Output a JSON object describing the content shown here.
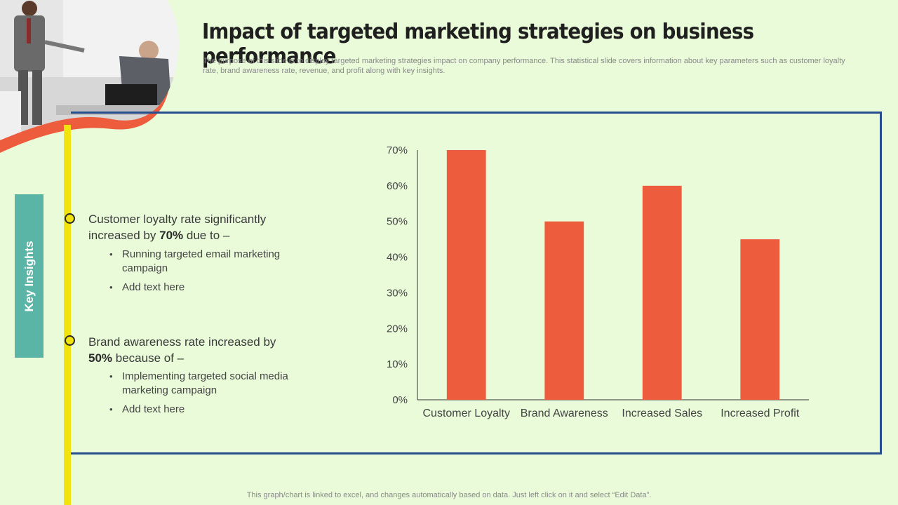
{
  "title": "Impact of targeted marketing strategies on business performance",
  "subtitle": "The purpose of this slide is to display targeted marketing strategies impact on company performance. This statistical slide covers information about key parameters such as customer loyalty rate, brand awareness rate, revenue, and profit along with key insights.",
  "key_insights_label": "Key Insights",
  "insights": [
    {
      "head_pre": "Customer loyalty rate significantly increased by ",
      "head_bold": "70%",
      "head_post": " due to –",
      "bullets": [
        "Running targeted email marketing campaign",
        "Add text here"
      ]
    },
    {
      "head_pre": "Brand awareness rate increased by ",
      "head_bold": "50%",
      "head_post": " because of –",
      "bullets": [
        "Implementing targeted social media marketing campaign",
        "Add text here"
      ]
    }
  ],
  "footer": "This graph/chart is linked to excel,  and changes automatically based on data. Just left click on it and select “Edit Data”.",
  "colors": {
    "bar": "#ee5c3e",
    "frame": "#274f8f",
    "accent_line": "#f1e40e",
    "key_box": "#5bb5a6",
    "background": "#e9fbd8"
  },
  "chart_data": {
    "type": "bar",
    "categories": [
      "Customer Loyalty",
      "Brand Awareness",
      "Increased Sales",
      "Increased Profit"
    ],
    "values": [
      70,
      50,
      60,
      45
    ],
    "ylim": [
      0,
      70
    ],
    "yticks": [
      "0%",
      "10%",
      "20%",
      "30%",
      "40%",
      "50%",
      "60%",
      "70%"
    ],
    "grid": false,
    "title": "",
    "xlabel": "",
    "ylabel": ""
  }
}
